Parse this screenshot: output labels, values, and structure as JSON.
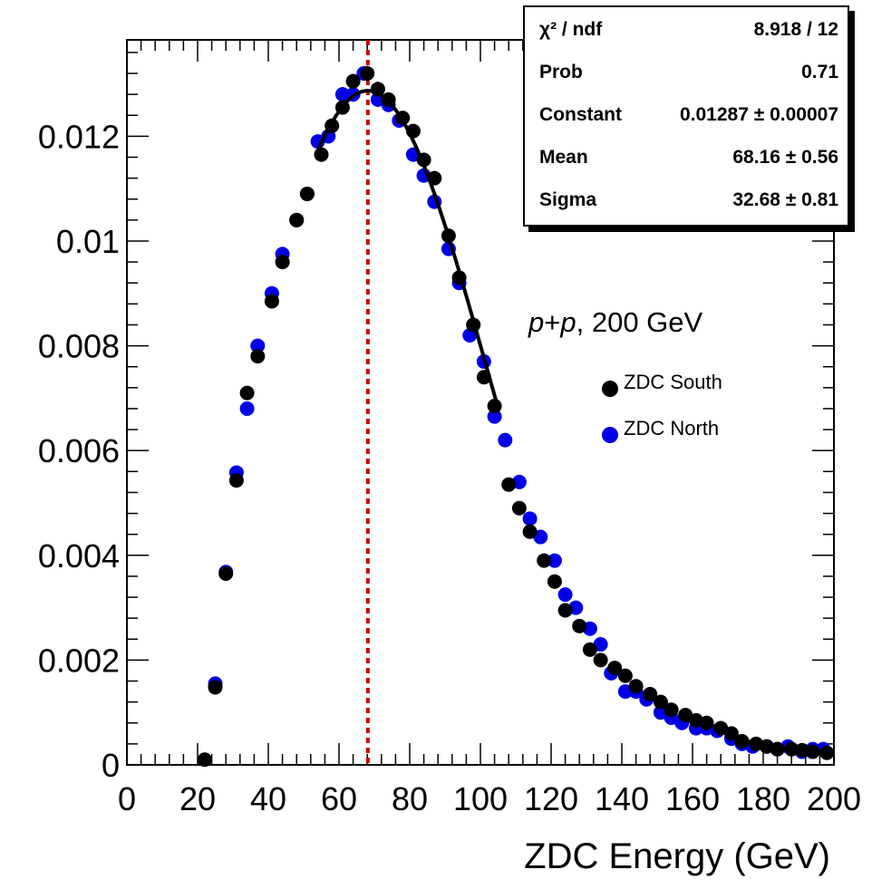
{
  "chart_data": {
    "type": "scatter",
    "xlabel": "ZDC Energy (GeV)",
    "ylabel": "",
    "xlim": [
      0,
      200
    ],
    "ylim": [
      0,
      0.01384
    ],
    "x_ticks": [
      "0",
      "20",
      "40",
      "60",
      "80",
      "100",
      "120",
      "140",
      "160",
      "180",
      "200"
    ],
    "y_ticks": [
      "0",
      "0.002",
      "0.004",
      "0.006",
      "0.008",
      "0.01",
      "0.012"
    ],
    "annotation": {
      "italic1": "p",
      "plus": "+",
      "italic2": "p",
      "rest": ", 200 GeV"
    },
    "vertical_line": {
      "x": 68.16,
      "color": "#cc0000",
      "style": "dotted"
    },
    "series": [
      {
        "name": "ZDC South",
        "color": "#000000",
        "x": [
          22,
          25,
          28,
          31,
          34,
          37,
          41,
          44,
          48,
          51,
          55,
          58,
          61,
          64,
          68,
          71,
          74,
          78,
          81,
          84,
          87,
          91,
          94,
          98,
          101,
          104,
          108,
          111,
          114,
          118,
          121,
          124,
          128,
          131,
          134,
          138,
          141,
          144,
          148,
          151,
          154,
          158,
          161,
          164,
          168,
          171,
          174,
          178,
          181,
          184,
          188,
          191,
          194,
          198
        ],
        "y": [
          0.0001,
          0.00148,
          0.00365,
          0.00543,
          0.0071,
          0.0078,
          0.00885,
          0.0096,
          0.0104,
          0.0109,
          0.01165,
          0.0122,
          0.01255,
          0.01305,
          0.0132,
          0.0129,
          0.0127,
          0.01235,
          0.0121,
          0.01155,
          0.0112,
          0.0101,
          0.0093,
          0.0084,
          0.0074,
          0.00685,
          0.00535,
          0.0049,
          0.00445,
          0.0039,
          0.0035,
          0.00295,
          0.00265,
          0.0022,
          0.002,
          0.00185,
          0.0017,
          0.0015,
          0.00135,
          0.0012,
          0.00105,
          0.00095,
          0.00085,
          0.0008,
          0.0007,
          0.0006,
          0.00045,
          0.0004,
          0.00035,
          0.0003,
          0.0003,
          0.00028,
          0.00025,
          0.00023
        ],
        "errors": [
          3e-05,
          4e-05,
          5e-05,
          5e-05,
          6e-05,
          6e-05,
          7e-05,
          7e-05,
          8e-05,
          8e-05,
          8e-05,
          8e-05,
          8e-05,
          9e-05,
          9e-05,
          9e-05,
          8e-05,
          8e-05,
          8e-05,
          8e-05,
          8e-05,
          8e-05,
          8e-05,
          7e-05,
          7e-05,
          7e-05,
          6e-05,
          6e-05,
          6e-05,
          5e-05,
          5e-05,
          5e-05,
          5e-05,
          4e-05,
          4e-05,
          4e-05,
          4e-05,
          4e-05,
          4e-05,
          3e-05,
          3e-05,
          3e-05,
          3e-05,
          3e-05,
          3e-05,
          3e-05,
          3e-05,
          3e-05,
          3e-05,
          3e-05,
          3e-05,
          3e-05,
          3e-05,
          3e-05
        ]
      },
      {
        "name": "ZDC North",
        "color": "#0000e6",
        "x": [
          25,
          28,
          31,
          34,
          37,
          41,
          44,
          48,
          51,
          54,
          57,
          61,
          64,
          67,
          71,
          74,
          77,
          81,
          84,
          87,
          91,
          94,
          97,
          101,
          104,
          107,
          111,
          114,
          117,
          121,
          124,
          127,
          131,
          134,
          137,
          141,
          144,
          147,
          151,
          154,
          157,
          161,
          164,
          167,
          171,
          174,
          177,
          181,
          184,
          187,
          191,
          194,
          197
        ],
        "y": [
          0.00155,
          0.00368,
          0.00558,
          0.0068,
          0.008,
          0.009,
          0.00975,
          0.0104,
          0.0109,
          0.0119,
          0.012,
          0.0128,
          0.0128,
          0.0132,
          0.0127,
          0.0126,
          0.0123,
          0.01165,
          0.01125,
          0.01075,
          0.00985,
          0.0092,
          0.0082,
          0.0077,
          0.00665,
          0.0062,
          0.0054,
          0.0047,
          0.00435,
          0.0039,
          0.00325,
          0.003,
          0.0026,
          0.0023,
          0.00175,
          0.0014,
          0.0014,
          0.00125,
          0.001,
          0.0009,
          0.0008,
          0.0007,
          0.0007,
          0.00065,
          0.0005,
          0.0004,
          0.00035,
          0.00035,
          0.0003,
          0.00035,
          0.00025,
          0.0003,
          0.0003
        ],
        "errors": [
          4e-05,
          5e-05,
          5e-05,
          6e-05,
          6e-05,
          7e-05,
          7e-05,
          8e-05,
          8e-05,
          8e-05,
          8e-05,
          9e-05,
          9e-05,
          9e-05,
          9e-05,
          9e-05,
          8e-05,
          8e-05,
          8e-05,
          8e-05,
          8e-05,
          8e-05,
          7e-05,
          7e-05,
          7e-05,
          6e-05,
          6e-05,
          6e-05,
          5e-05,
          5e-05,
          5e-05,
          5e-05,
          4e-05,
          4e-05,
          4e-05,
          4e-05,
          4e-05,
          4e-05,
          3e-05,
          3e-05,
          3e-05,
          3e-05,
          3e-05,
          3e-05,
          3e-05,
          3e-05,
          3e-05,
          3e-05,
          3e-05,
          3e-05,
          3e-05,
          3e-05,
          3e-05
        ]
      }
    ],
    "fit": {
      "function": "gaus",
      "constant": 0.01287,
      "mean": 68.16,
      "sigma": 32.68,
      "range": [
        54,
        105
      ],
      "color": "#000000"
    }
  },
  "stats": [
    {
      "key": "χ² / ndf",
      "value": "8.918 / 12"
    },
    {
      "key": "Prob",
      "value": "0.71"
    },
    {
      "key": "Constant",
      "value": "0.01287 ± 0.00007"
    },
    {
      "key": "Mean",
      "value": "68.16 ± 0.56"
    },
    {
      "key": "Sigma",
      "value": "32.68 ± 0.81"
    }
  ],
  "legend": [
    {
      "label": "ZDC South",
      "color": "#000000"
    },
    {
      "label": "ZDC North",
      "color": "#0000e6"
    }
  ]
}
